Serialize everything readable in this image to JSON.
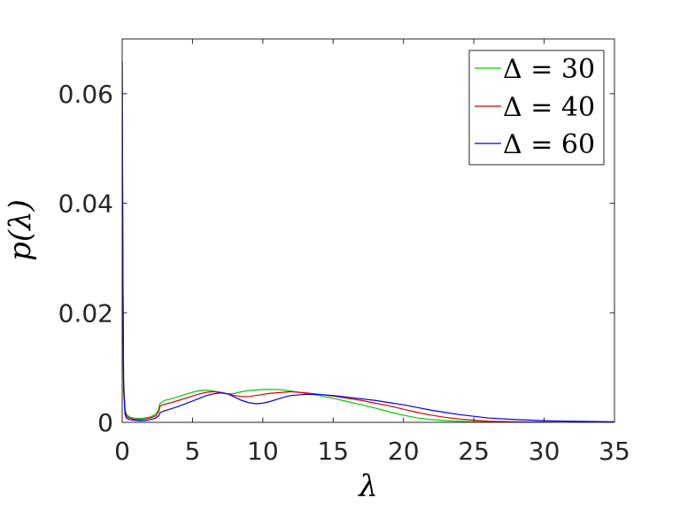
{
  "chart_data": {
    "type": "line",
    "title": "",
    "xlabel": "λ",
    "ylabel": "p(λ)",
    "xlim": [
      0,
      35
    ],
    "ylim": [
      0,
      0.07
    ],
    "xticks": [
      0,
      5,
      10,
      15,
      20,
      25,
      30,
      35
    ],
    "xtick_labels": [
      "0",
      "5",
      "10",
      "15",
      "20",
      "25",
      "30",
      "35"
    ],
    "yticks": [
      0,
      0.02,
      0.04,
      0.06
    ],
    "ytick_labels": [
      "0",
      "0.02",
      "0.04",
      "0.06"
    ],
    "grid": false,
    "legend_position": "top-right",
    "series": [
      {
        "name": "Δ = 30",
        "color": "#00cc00",
        "x": [
          0,
          0.05,
          0.1,
          0.2,
          0.3,
          0.5,
          0.8,
          1.2,
          1.6,
          2.0,
          2.4,
          2.6,
          2.7,
          3.0,
          3.5,
          4.0,
          4.5,
          5.0,
          5.5,
          6.0,
          6.5,
          7.0,
          7.5,
          8.0,
          8.5,
          9.0,
          9.5,
          10.0,
          10.5,
          11.0,
          11.5,
          12.0,
          13.0,
          14.0,
          15.0,
          16.0,
          17.0,
          18.0,
          19.0,
          20.0,
          21.0,
          22.0,
          23.0,
          24.0,
          25.0,
          26.0,
          28.0,
          30.0,
          32.0,
          35.0
        ],
        "y": [
          0.066,
          0.03,
          0.008,
          0.0025,
          0.0015,
          0.001,
          0.0008,
          0.0007,
          0.0008,
          0.001,
          0.0015,
          0.0025,
          0.0035,
          0.004,
          0.0043,
          0.0047,
          0.0051,
          0.0055,
          0.0058,
          0.0059,
          0.0057,
          0.0054,
          0.0052,
          0.0053,
          0.0056,
          0.0058,
          0.0059,
          0.006,
          0.006,
          0.006,
          0.0059,
          0.0057,
          0.0053,
          0.0049,
          0.0044,
          0.0038,
          0.0032,
          0.0026,
          0.0019,
          0.0013,
          0.0008,
          0.0005,
          0.0003,
          0.0002,
          0.00012,
          8e-05,
          4e-05,
          2e-05,
          1e-05,
          0.0
        ]
      },
      {
        "name": "Δ = 40",
        "color": "#dd0000",
        "x": [
          0,
          0.05,
          0.1,
          0.2,
          0.3,
          0.5,
          0.8,
          1.2,
          1.6,
          2.0,
          2.4,
          2.6,
          2.7,
          3.0,
          3.5,
          4.0,
          4.5,
          5.0,
          5.5,
          6.0,
          6.5,
          7.0,
          7.5,
          8.0,
          8.5,
          9.0,
          9.5,
          10.0,
          10.5,
          11.0,
          11.5,
          12.0,
          13.0,
          14.0,
          15.0,
          16.0,
          17.0,
          18.0,
          19.0,
          20.0,
          21.0,
          22.0,
          23.0,
          24.0,
          25.0,
          26.0,
          28.0,
          30.0,
          32.0,
          35.0
        ],
        "y": [
          0.066,
          0.028,
          0.007,
          0.002,
          0.0012,
          0.0008,
          0.0006,
          0.0005,
          0.0006,
          0.0008,
          0.0012,
          0.002,
          0.003,
          0.0033,
          0.0036,
          0.004,
          0.0044,
          0.0048,
          0.0052,
          0.0055,
          0.0056,
          0.0055,
          0.0052,
          0.0049,
          0.0047,
          0.0047,
          0.0049,
          0.0051,
          0.0053,
          0.0054,
          0.0055,
          0.0056,
          0.0054,
          0.0051,
          0.0048,
          0.0044,
          0.004,
          0.0035,
          0.003,
          0.0024,
          0.0018,
          0.0013,
          0.0009,
          0.0006,
          0.0004,
          0.0002,
          0.0001,
          5e-05,
          2e-05,
          0.0
        ]
      },
      {
        "name": "Δ = 60",
        "color": "#0000ee",
        "x": [
          0,
          0.05,
          0.1,
          0.2,
          0.3,
          0.5,
          0.8,
          1.2,
          1.6,
          2.0,
          2.4,
          2.6,
          2.7,
          3.0,
          3.5,
          4.0,
          4.5,
          5.0,
          5.5,
          6.0,
          6.5,
          7.0,
          7.5,
          8.0,
          8.5,
          9.0,
          9.5,
          10.0,
          10.5,
          11.0,
          11.5,
          12.0,
          13.0,
          14.0,
          15.0,
          16.0,
          17.0,
          18.0,
          19.0,
          20.0,
          21.0,
          22.0,
          23.0,
          24.0,
          25.0,
          26.0,
          28.0,
          30.0,
          32.0,
          35.0
        ],
        "y": [
          0.066,
          0.025,
          0.006,
          0.0015,
          0.0008,
          0.0005,
          0.0004,
          0.0003,
          0.0003,
          0.0005,
          0.0008,
          0.0012,
          0.0018,
          0.0021,
          0.0025,
          0.0029,
          0.0034,
          0.0039,
          0.0044,
          0.0049,
          0.0052,
          0.0054,
          0.0052,
          0.0046,
          0.004,
          0.0036,
          0.0034,
          0.0035,
          0.0038,
          0.0042,
          0.0046,
          0.0049,
          0.0051,
          0.0051,
          0.0049,
          0.0046,
          0.0043,
          0.004,
          0.0036,
          0.0032,
          0.0027,
          0.0022,
          0.0018,
          0.0014,
          0.0011,
          0.0008,
          0.0005,
          0.0003,
          0.0002,
          0.0001
        ]
      }
    ]
  }
}
